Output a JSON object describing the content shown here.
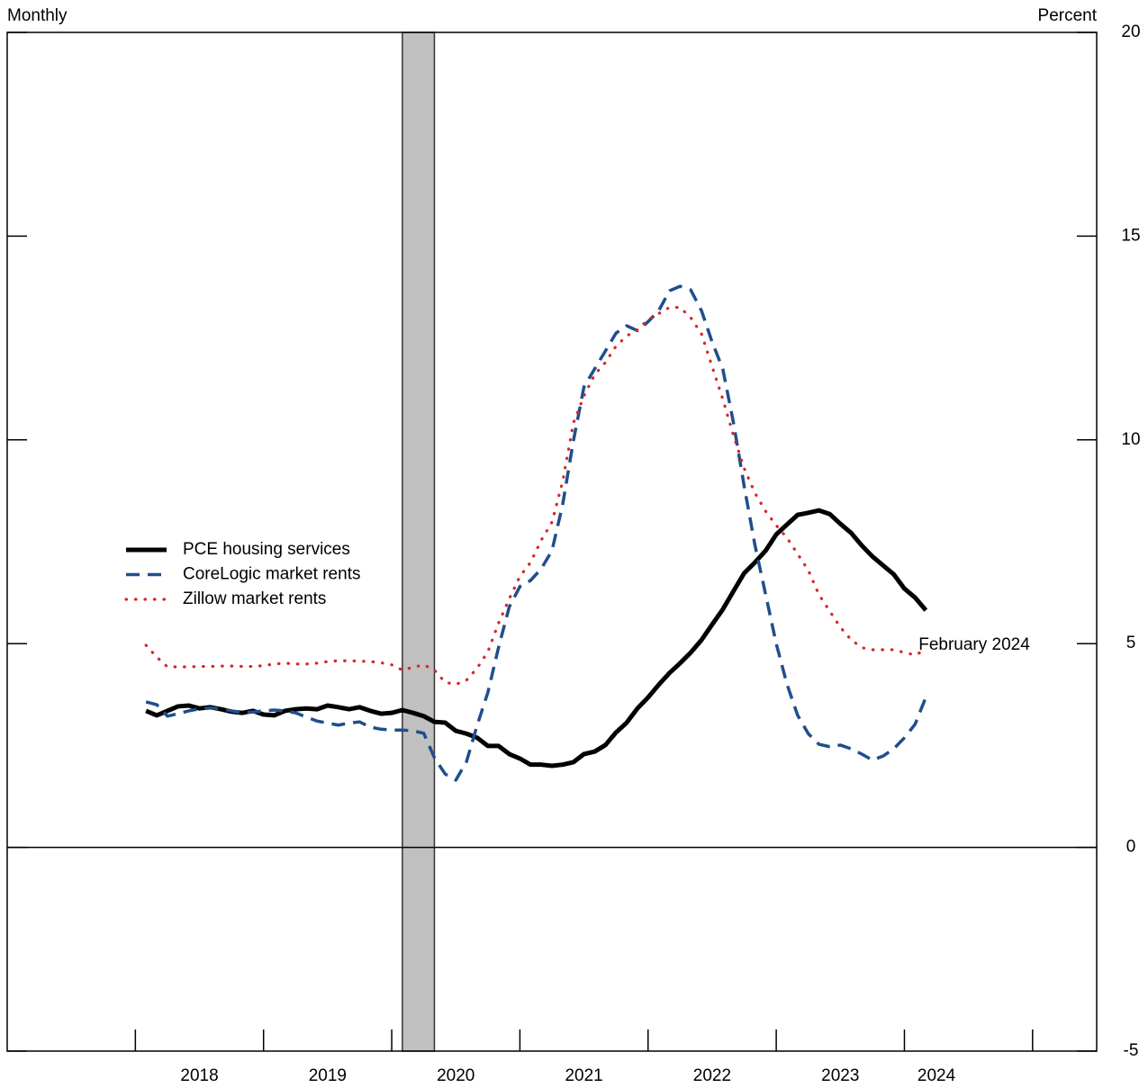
{
  "chart_data": {
    "type": "line",
    "left_label": "Monthly",
    "right_label": "Percent",
    "annotation": {
      "text": "February 2024",
      "x": 2024.167,
      "y": 5
    },
    "recession": [
      2020.083,
      2020.333
    ],
    "recession_color": "#c0c0c0",
    "x": [
      2018.083,
      2018.167,
      2018.25,
      2018.333,
      2018.417,
      2018.5,
      2018.583,
      2018.667,
      2018.75,
      2018.833,
      2018.917,
      2019,
      2019.083,
      2019.167,
      2019.25,
      2019.333,
      2019.417,
      2019.5,
      2019.583,
      2019.667,
      2019.75,
      2019.833,
      2019.917,
      2020,
      2020.083,
      2020.167,
      2020.25,
      2020.333,
      2020.417,
      2020.5,
      2020.583,
      2020.667,
      2020.75,
      2020.833,
      2020.917,
      2021,
      2021.083,
      2021.167,
      2021.25,
      2021.333,
      2021.417,
      2021.5,
      2021.583,
      2021.667,
      2021.75,
      2021.833,
      2021.917,
      2022,
      2022.083,
      2022.167,
      2022.25,
      2022.333,
      2022.417,
      2022.5,
      2022.583,
      2022.667,
      2022.75,
      2022.833,
      2022.917,
      2023,
      2023.083,
      2023.167,
      2023.25,
      2023.333,
      2023.417,
      2023.5,
      2023.583,
      2023.667,
      2023.75,
      2023.833,
      2023.917,
      2024,
      2024.083,
      2024.167
    ],
    "series": [
      {
        "name": "PCE housing services",
        "color": "#000000",
        "style": "solid",
        "values": [
          3.35,
          3.24,
          3.35,
          3.46,
          3.48,
          3.41,
          3.44,
          3.39,
          3.33,
          3.3,
          3.35,
          3.26,
          3.24,
          3.35,
          3.39,
          3.41,
          3.39,
          3.48,
          3.44,
          3.39,
          3.44,
          3.35,
          3.28,
          3.3,
          3.37,
          3.3,
          3.22,
          3.08,
          3.06,
          2.86,
          2.79,
          2.69,
          2.49,
          2.49,
          2.29,
          2.18,
          2.03,
          2.03,
          2.0,
          2.03,
          2.09,
          2.29,
          2.35,
          2.51,
          2.82,
          3.06,
          3.41,
          3.68,
          3.99,
          4.28,
          4.52,
          4.78,
          5.09,
          5.47,
          5.84,
          6.29,
          6.73,
          6.99,
          7.28,
          7.68,
          7.92,
          8.16,
          8.21,
          8.27,
          8.18,
          7.94,
          7.72,
          7.41,
          7.14,
          6.92,
          6.7,
          6.35,
          6.13,
          5.82
        ]
      },
      {
        "name": "CoreLogic market rents",
        "color": "#1f4e8c",
        "style": "dashed",
        "values": [
          3.57,
          3.5,
          3.22,
          3.28,
          3.35,
          3.4,
          3.42,
          3.4,
          3.35,
          3.3,
          3.32,
          3.35,
          3.37,
          3.35,
          3.3,
          3.2,
          3.1,
          3.05,
          3.0,
          3.05,
          3.08,
          2.95,
          2.9,
          2.88,
          2.88,
          2.86,
          2.8,
          2.2,
          1.8,
          1.65,
          2.1,
          3.0,
          3.8,
          4.9,
          5.9,
          6.4,
          6.55,
          6.84,
          7.28,
          8.4,
          9.97,
          11.3,
          11.74,
          12.18,
          12.62,
          12.8,
          12.68,
          12.9,
          13.17,
          13.66,
          13.77,
          13.68,
          13.17,
          12.4,
          11.74,
          10.41,
          8.86,
          7.43,
          6.21,
          5.0,
          4.01,
          3.24,
          2.79,
          2.53,
          2.47,
          2.51,
          2.42,
          2.29,
          2.14,
          2.24,
          2.42,
          2.69,
          3.02,
          3.68
        ]
      },
      {
        "name": "Zillow market rents",
        "color": "#d62728",
        "style": "dotted",
        "values": [
          4.96,
          4.67,
          4.43,
          4.43,
          4.43,
          4.44,
          4.44,
          4.45,
          4.45,
          4.44,
          4.44,
          4.46,
          4.5,
          4.52,
          4.5,
          4.5,
          4.52,
          4.56,
          4.58,
          4.58,
          4.57,
          4.56,
          4.53,
          4.48,
          4.35,
          4.42,
          4.48,
          4.35,
          4.05,
          4.0,
          4.1,
          4.4,
          4.8,
          5.5,
          6.1,
          6.65,
          6.99,
          7.54,
          7.98,
          8.97,
          10.41,
          11.08,
          11.6,
          11.9,
          12.3,
          12.55,
          12.7,
          12.95,
          13.1,
          13.25,
          13.25,
          13.0,
          12.6,
          11.8,
          11.0,
          10.1,
          9.3,
          8.7,
          8.25,
          7.9,
          7.6,
          7.2,
          6.8,
          6.2,
          5.8,
          5.4,
          5.1,
          4.9,
          4.85,
          4.85,
          4.85,
          4.78,
          4.72,
          4.85
        ]
      }
    ],
    "xlim": [
      2017,
      2025.5
    ],
    "xticks": [
      2018,
      2019,
      2020,
      2021,
      2022,
      2023,
      2024,
      2025
    ],
    "xtick_labels": [
      {
        "value": 2018.5,
        "label": "2018"
      },
      {
        "value": 2019.5,
        "label": "2019"
      },
      {
        "value": 2020.5,
        "label": "2020"
      },
      {
        "value": 2021.5,
        "label": "2021"
      },
      {
        "value": 2022.5,
        "label": "2022"
      },
      {
        "value": 2023.5,
        "label": "2023"
      },
      {
        "value": 2024.25,
        "label": "2024"
      }
    ],
    "ylim": [
      -5,
      20
    ],
    "yticks": [
      -5,
      0,
      5,
      10,
      15,
      20
    ],
    "zero_line": 0
  }
}
